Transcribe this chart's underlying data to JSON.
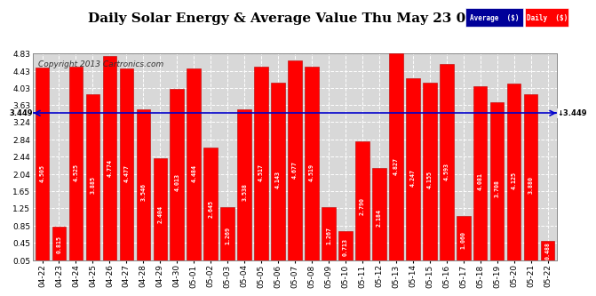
{
  "title": "Daily Solar Energy & Average Value Thu May 23 05:56",
  "copyright": "Copyright 2013 Cartronics.com",
  "categories": [
    "04-22",
    "04-23",
    "04-24",
    "04-25",
    "04-26",
    "04-27",
    "04-28",
    "04-29",
    "04-30",
    "05-01",
    "05-02",
    "05-03",
    "05-04",
    "05-05",
    "05-06",
    "05-07",
    "05-08",
    "05-09",
    "05-10",
    "05-11",
    "05-12",
    "05-13",
    "05-14",
    "05-15",
    "05-16",
    "05-17",
    "05-18",
    "05-19",
    "05-20",
    "05-21",
    "05-22"
  ],
  "values": [
    4.505,
    0.815,
    4.525,
    3.885,
    4.774,
    4.477,
    3.546,
    2.404,
    4.013,
    4.484,
    2.645,
    1.269,
    3.538,
    4.517,
    4.143,
    4.677,
    4.519,
    1.267,
    0.713,
    2.79,
    2.184,
    4.827,
    4.247,
    4.155,
    4.593,
    1.06,
    4.081,
    3.708,
    4.125,
    3.88,
    0.488
  ],
  "average_line": 3.449,
  "bar_color": "#ff0000",
  "bar_edge_color": "#bb0000",
  "background_color": "#ffffff",
  "axis_bg_color": "#d8d8d8",
  "average_line_color": "#0000cc",
  "ylim_min": 0.05,
  "ylim_max": 4.83,
  "yticks": [
    0.05,
    0.45,
    0.85,
    1.25,
    1.65,
    2.04,
    2.44,
    2.84,
    3.24,
    3.63,
    4.03,
    4.43,
    4.83
  ],
  "legend_avg_color": "#000099",
  "legend_daily_color": "#ff0000",
  "title_fontsize": 11,
  "tick_fontsize": 6.5,
  "value_fontsize": 4.8,
  "copyright_fontsize": 6.5
}
